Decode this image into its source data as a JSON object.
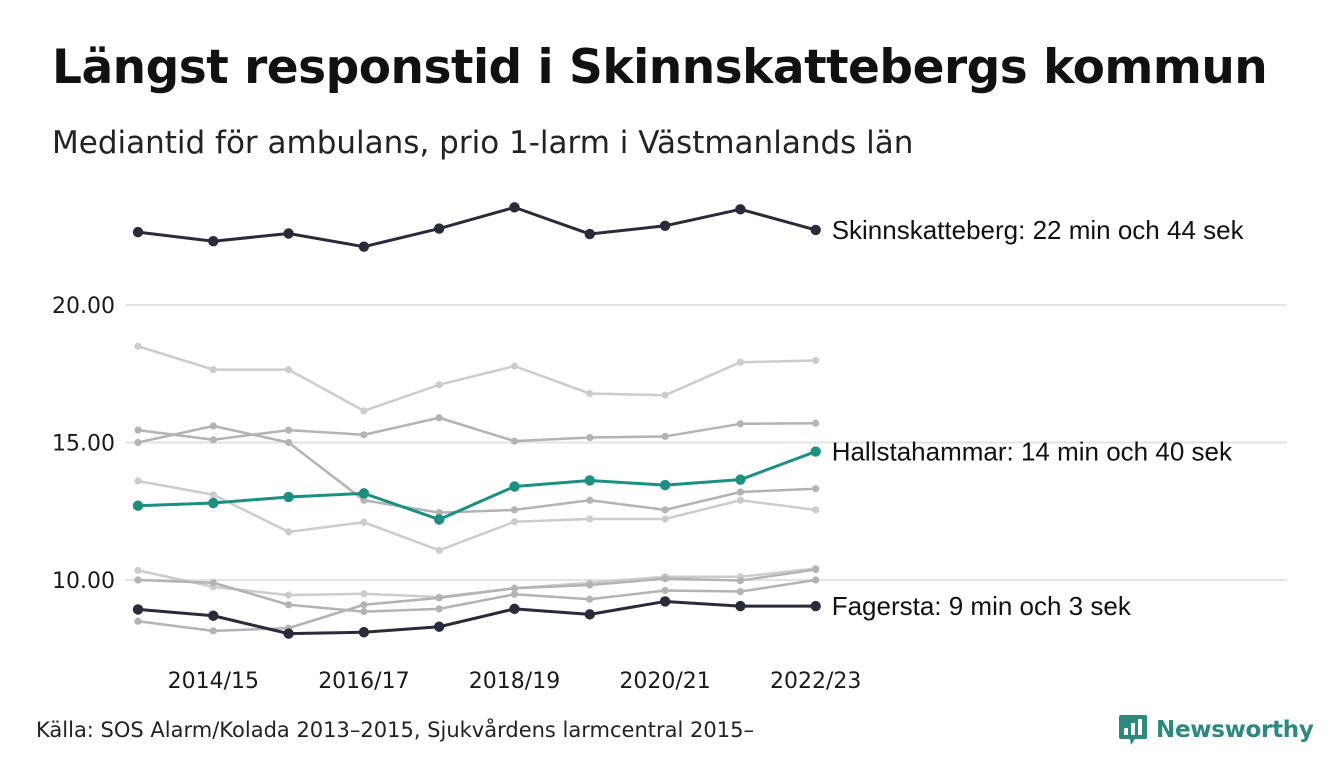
{
  "chart_data": {
    "type": "line",
    "title": "Längst responstid i Skinnskattebergs kommun",
    "subtitle": "Mediantid för ambulans, prio 1-larm i Västmanlands län",
    "x": [
      "2013/14",
      "2014/15",
      "2015/16",
      "2016/17",
      "2017/18",
      "2018/19",
      "2019/20",
      "2020/21",
      "2021/22",
      "2022/23"
    ],
    "x_tick_labels": [
      "2014/15",
      "2016/17",
      "2018/19",
      "2020/21",
      "2022/23"
    ],
    "y_ticks": [
      "10.00",
      "15.00",
      "20.00"
    ],
    "ylim": [
      7.5,
      24.5
    ],
    "grid": true,
    "highlighted_series": [
      {
        "label": "Skinnskatteberg: 22 min och 44 sek",
        "color": "#2b2a3a",
        "values": [
          22.65,
          22.32,
          22.6,
          22.12,
          22.78,
          23.55,
          22.58,
          22.88,
          23.48,
          22.73
        ]
      },
      {
        "label": "Hallstahammar: 14 min och 40 sek",
        "color": "#1b8f82",
        "values": [
          12.7,
          12.8,
          13.02,
          13.15,
          12.2,
          13.4,
          13.62,
          13.45,
          13.65,
          14.67
        ]
      },
      {
        "label": "Fagersta: 9 min och 3 sek",
        "color": "#2b2a3a",
        "values": [
          8.93,
          8.7,
          8.05,
          8.1,
          8.3,
          8.95,
          8.75,
          9.22,
          9.05,
          9.05
        ]
      }
    ],
    "background_series": [
      {
        "color": "#cccccc",
        "values": [
          18.5,
          17.65,
          17.65,
          16.15,
          17.1,
          17.78,
          16.78,
          16.72,
          17.92,
          17.98
        ]
      },
      {
        "color": "#b3b3b3",
        "values": [
          15.45,
          15.1,
          15.45,
          15.28,
          15.9,
          15.05,
          15.18,
          15.22,
          15.68,
          15.7
        ]
      },
      {
        "color": "#b3b3b3",
        "values": [
          15.0,
          15.6,
          15.0,
          12.9,
          12.45,
          12.55,
          12.9,
          12.55,
          13.2,
          13.32
        ]
      },
      {
        "color": "#cccccc",
        "values": [
          13.6,
          13.1,
          11.75,
          12.1,
          11.08,
          12.12,
          12.22,
          12.22,
          12.9,
          12.55
        ]
      },
      {
        "color": "#cccccc",
        "values": [
          10.35,
          9.75,
          9.45,
          9.5,
          9.38,
          9.7,
          9.9,
          10.12,
          10.12,
          10.42
        ]
      },
      {
        "color": "#b3b3b3",
        "values": [
          10.0,
          9.9,
          9.1,
          8.85,
          8.95,
          9.48,
          9.3,
          9.62,
          9.58,
          10.0
        ]
      },
      {
        "color": "#b3b3b3",
        "values": [
          8.5,
          8.15,
          8.25,
          9.1,
          9.35,
          9.7,
          9.82,
          10.05,
          9.98,
          10.38
        ]
      }
    ]
  },
  "source": "Källa: SOS Alarm/Kolada 2013–2015, Sjukvårdens larmcentral 2015–",
  "brand": {
    "name": "Newsworthy",
    "logo_icon": "chart-bubble-icon",
    "color": "#2a8a7e"
  }
}
